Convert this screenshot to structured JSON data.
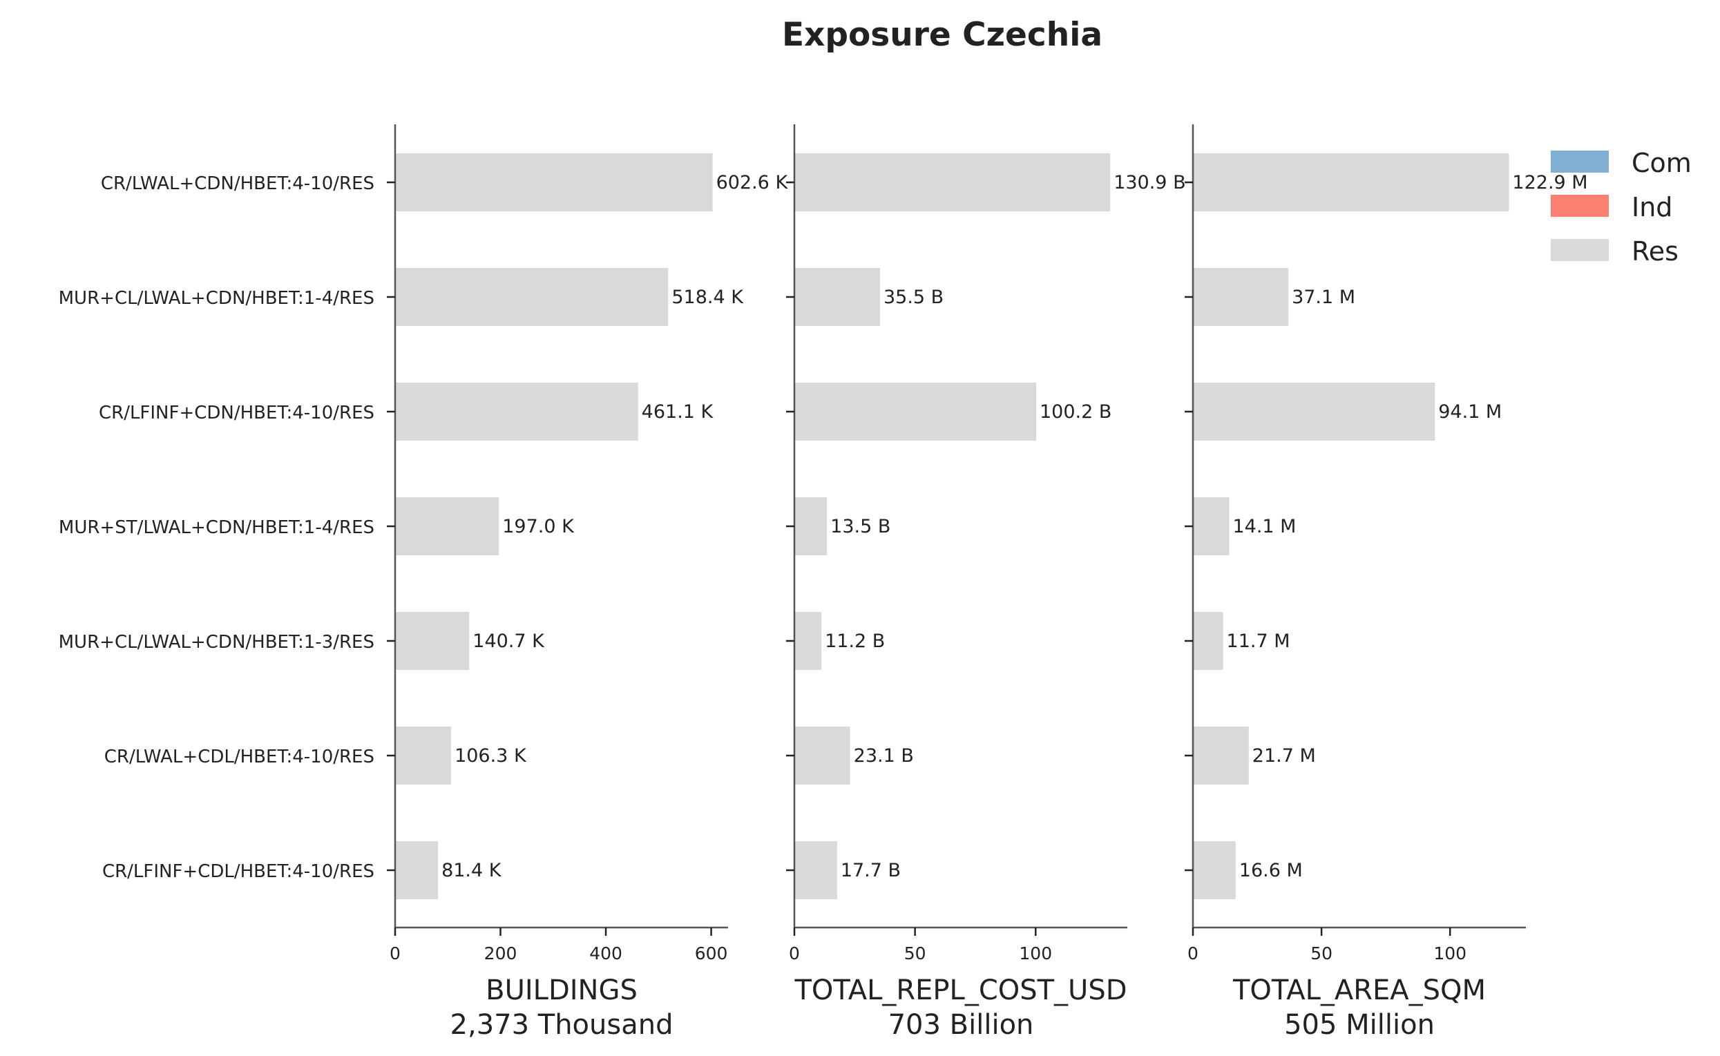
{
  "chart_data": {
    "type": "bar",
    "orientation": "horizontal",
    "stacked": true,
    "title": "Exposure Czechia",
    "categories": [
      "CR/LWAL+CDN/HBET:4-10/RES",
      "MUR+CL/LWAL+CDN/HBET:1-4/RES",
      "CR/LFINF+CDN/HBET:4-10/RES",
      "MUR+ST/LWAL+CDN/HBET:1-4/RES",
      "MUR+CL/LWAL+CDN/HBET:1-3/RES",
      "CR/LWAL+CDL/HBET:4-10/RES",
      "CR/LFINF+CDL/HBET:4-10/RES"
    ],
    "legend": {
      "placement": "top-right",
      "entries": [
        {
          "name": "Com",
          "color": "#7fafd3"
        },
        {
          "name": "Ind",
          "color": "#fb8072"
        },
        {
          "name": "Res",
          "color": "#d9d9d9"
        }
      ]
    },
    "panels": [
      {
        "xlabel": "BUILDINGS",
        "total": "2,373 Thousand",
        "xlim": [
          0,
          632
        ],
        "xticks": [
          0,
          200,
          400,
          600
        ],
        "series": [
          {
            "name": "Res",
            "values": [
              602.6,
              518.4,
              461.1,
              197.0,
              140.7,
              106.3,
              81.4
            ]
          }
        ],
        "value_labels": [
          "602.6 K",
          "518.4 K",
          "461.1 K",
          "197.0 K",
          "140.7 K",
          "106.3 K",
          "81.4 K"
        ]
      },
      {
        "xlabel": "TOTAL_REPL_COST_USD",
        "total": "703 Billion",
        "xlim": [
          0,
          138
        ],
        "xticks": [
          0,
          50,
          100
        ],
        "series": [
          {
            "name": "Res",
            "values": [
              130.9,
              35.5,
              100.2,
              13.5,
              11.2,
              23.1,
              17.7
            ]
          }
        ],
        "value_labels": [
          "130.9 B",
          "35.5 B",
          "100.2 B",
          "13.5 B",
          "11.2 B",
          "23.1 B",
          "17.7 B"
        ]
      },
      {
        "xlabel": "TOTAL_AREA_SQM",
        "total": "505 Million",
        "xlim": [
          0,
          129.5
        ],
        "xticks": [
          0,
          50,
          100
        ],
        "series": [
          {
            "name": "Res",
            "values": [
              122.9,
              37.1,
              94.1,
              14.1,
              11.7,
              21.7,
              16.6
            ]
          }
        ],
        "value_labels": [
          "122.9 M",
          "37.1 M",
          "94.1 M",
          "14.1 M",
          "11.7 M",
          "21.7 M",
          "16.6 M"
        ]
      }
    ],
    "grid": false
  }
}
